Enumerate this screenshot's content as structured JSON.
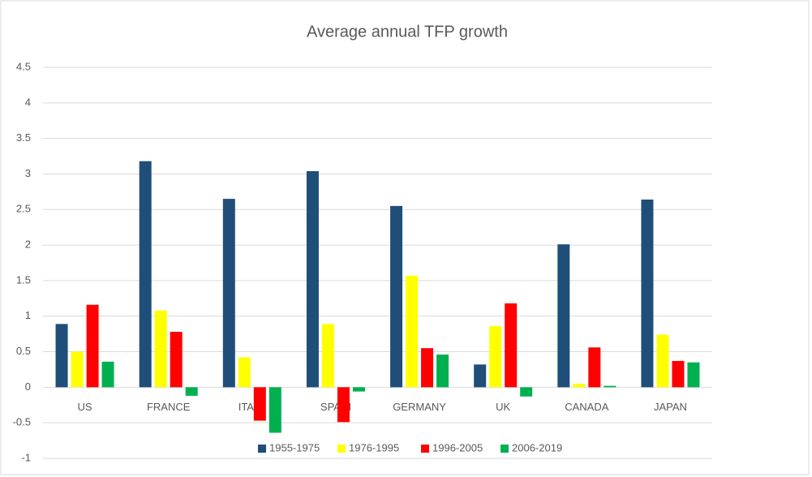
{
  "chart_data": {
    "type": "bar",
    "title": "Average annual TFP growth",
    "categories": [
      "US",
      "FRANCE",
      "ITALY",
      "SPAIN",
      "GERMANY",
      "UK",
      "CANADA",
      "JAPAN"
    ],
    "series": [
      {
        "name": "1955-1975",
        "color": "#1f4e79",
        "values": [
          0.89,
          3.18,
          2.65,
          3.04,
          2.55,
          0.32,
          2.01,
          2.64
        ]
      },
      {
        "name": "1976-1995",
        "color": "#ffff00",
        "values": [
          0.5,
          1.08,
          0.42,
          0.89,
          1.57,
          0.86,
          0.05,
          0.74
        ]
      },
      {
        "name": "1996-2005",
        "color": "#ff0000",
        "values": [
          1.16,
          0.78,
          -0.47,
          -0.49,
          0.55,
          1.18,
          0.56,
          0.37
        ]
      },
      {
        "name": "2006-2019",
        "color": "#00b050",
        "values": [
          0.36,
          -0.12,
          -0.64,
          -0.06,
          0.46,
          -0.13,
          0.02,
          0.35
        ]
      }
    ],
    "ylim": [
      -1,
      4.5
    ],
    "yticks": [
      -1,
      -0.5,
      0,
      0.5,
      1,
      1.5,
      2,
      2.5,
      3,
      3.5,
      4,
      4.5
    ],
    "grid": true,
    "legend": "bottom"
  }
}
